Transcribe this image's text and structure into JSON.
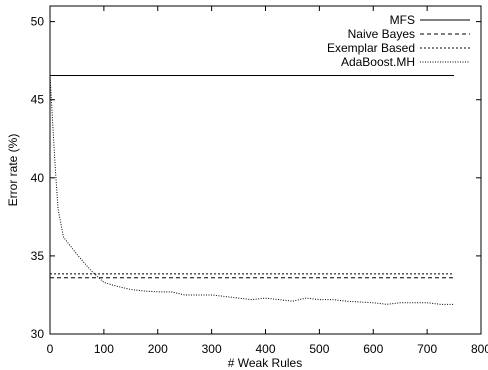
{
  "chart_data": {
    "type": "line",
    "xlabel": "# Weak Rules",
    "ylabel": "Error rate (%)",
    "xlim": [
      0,
      800
    ],
    "ylim": [
      30,
      51
    ],
    "x_ticks": [
      0,
      100,
      200,
      300,
      400,
      500,
      600,
      700,
      800
    ],
    "y_ticks": [
      30,
      35,
      40,
      45,
      50
    ],
    "grid": false,
    "legend_position": "top-right",
    "series": [
      {
        "name": "MFS",
        "style": "solid",
        "x": [
          0,
          750
        ],
        "y": [
          46.55,
          46.55
        ]
      },
      {
        "name": "Naive Bayes",
        "style": "dashed",
        "x": [
          0,
          750
        ],
        "y": [
          33.6,
          33.6
        ]
      },
      {
        "name": "Exemplar Based",
        "style": "dotted",
        "x": [
          0,
          750
        ],
        "y": [
          33.85,
          33.85
        ]
      },
      {
        "name": "AdaBoost.MH",
        "style": "finedot",
        "x": [
          0,
          5,
          10,
          15,
          25,
          50,
          75,
          100,
          125,
          150,
          175,
          200,
          225,
          250,
          275,
          300,
          325,
          350,
          375,
          400,
          425,
          450,
          475,
          500,
          525,
          550,
          575,
          600,
          625,
          650,
          675,
          700,
          725,
          750
        ],
        "y": [
          46.6,
          43.5,
          40.5,
          38.0,
          36.2,
          35.1,
          34.1,
          33.3,
          33.05,
          32.85,
          32.75,
          32.7,
          32.7,
          32.5,
          32.5,
          32.5,
          32.4,
          32.3,
          32.2,
          32.3,
          32.2,
          32.1,
          32.3,
          32.2,
          32.2,
          32.1,
          32.05,
          32.0,
          31.9,
          32.0,
          32.0,
          32.0,
          31.9,
          31.9
        ]
      }
    ]
  }
}
